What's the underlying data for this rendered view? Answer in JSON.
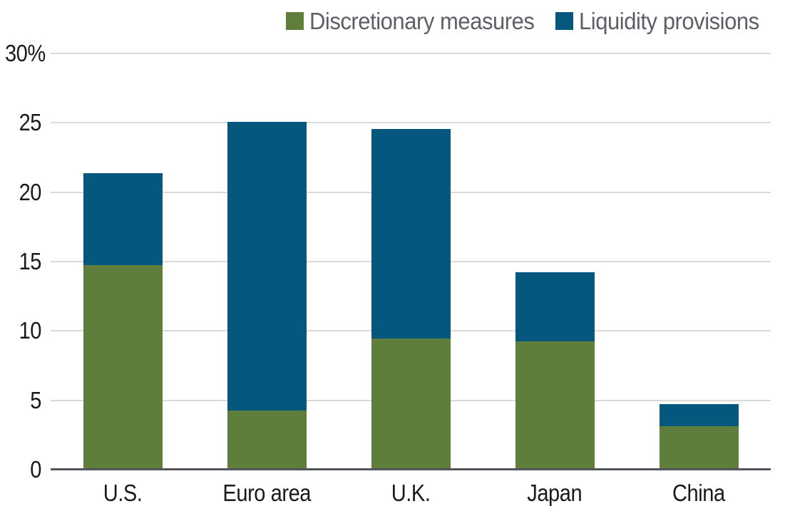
{
  "chart_data": {
    "type": "bar",
    "stacked": true,
    "title": "",
    "xlabel": "",
    "ylabel": "",
    "categories": [
      "U.S.",
      "Euro area",
      "U.K.",
      "Japan",
      "China"
    ],
    "series": [
      {
        "name": "Discretionary measures",
        "color": "#5F7E3B",
        "values": [
          14.7,
          4.2,
          9.4,
          9.2,
          3.1
        ]
      },
      {
        "name": "Liquidity provisions",
        "color": "#05577E",
        "values": [
          6.6,
          20.8,
          15.1,
          5.0,
          1.6
        ]
      }
    ],
    "stack_totals": [
      21.3,
      25.0,
      24.5,
      14.2,
      4.7
    ],
    "ylim": [
      0,
      30
    ],
    "yticks": [
      {
        "value": 30,
        "label": "30%"
      },
      {
        "value": 25,
        "label": "25"
      },
      {
        "value": 20,
        "label": "20"
      },
      {
        "value": 15,
        "label": "15"
      },
      {
        "value": 10,
        "label": "10"
      },
      {
        "value": 5,
        "label": "5"
      },
      {
        "value": 0,
        "label": "0"
      }
    ],
    "grid": true,
    "legend_position": "top-right",
    "colors": {
      "background": "#FFFFFF",
      "gridline": "#D8DBD8",
      "axis_line": "#54545C",
      "tick_label": "#1A1A1A",
      "category_label": "#1A1A1A",
      "legend_text": "#5E5E68"
    }
  }
}
